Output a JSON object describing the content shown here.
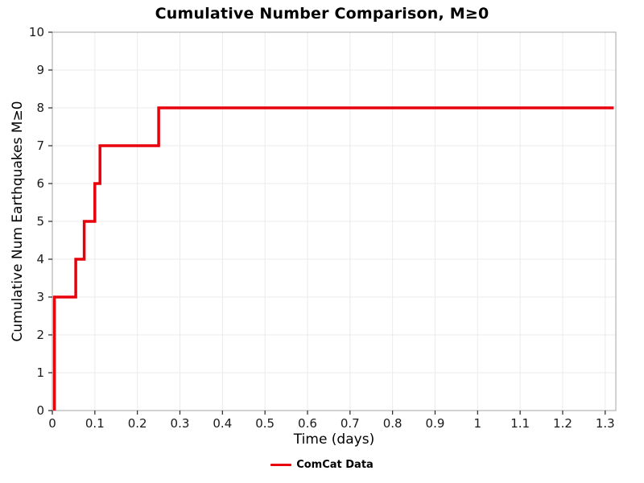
{
  "chart_data": {
    "type": "line",
    "subtype": "step",
    "title": "Cumulative Number Comparison, M≥0",
    "xlabel": "Time (days)",
    "ylabel": "Cumulative Num Earthquakes M≥0",
    "legend": [
      {
        "name": "ComCat Data",
        "color": "#e8000b"
      }
    ],
    "line_color": "#e8000b",
    "line_width": 3.5,
    "xlim": [
      0,
      1.325
    ],
    "ylim": [
      0,
      10
    ],
    "x_ticks": [
      0,
      0.1,
      0.2,
      0.3,
      0.4,
      0.5,
      0.6,
      0.7,
      0.8,
      0.9,
      1.0,
      1.1,
      1.2,
      1.3
    ],
    "x_tick_labels": [
      "0",
      "0.1",
      "0.2",
      "0.3",
      "0.4",
      "0.5",
      "0.6",
      "0.7",
      "0.8",
      "0.9",
      "1",
      "1.1",
      "1.2",
      "1.3"
    ],
    "y_ticks": [
      0,
      1,
      2,
      3,
      4,
      5,
      6,
      7,
      8,
      9,
      10
    ],
    "y_tick_labels": [
      "0",
      "1",
      "2",
      "3",
      "4",
      "5",
      "6",
      "7",
      "8",
      "9",
      "10"
    ],
    "grid": true,
    "grid_color": "#ebebeb",
    "spine_color": "#b4b4b4",
    "tick_color": "#262626",
    "tick_label_color": "#1a1a1a",
    "points": [
      [
        0.005,
        0
      ],
      [
        0.005,
        3
      ],
      [
        0.055,
        3
      ],
      [
        0.055,
        4
      ],
      [
        0.075,
        4
      ],
      [
        0.075,
        5
      ],
      [
        0.1,
        5
      ],
      [
        0.1,
        6
      ],
      [
        0.112,
        6
      ],
      [
        0.112,
        7
      ],
      [
        0.25,
        7
      ],
      [
        0.25,
        8
      ],
      [
        1.32,
        8
      ]
    ]
  }
}
